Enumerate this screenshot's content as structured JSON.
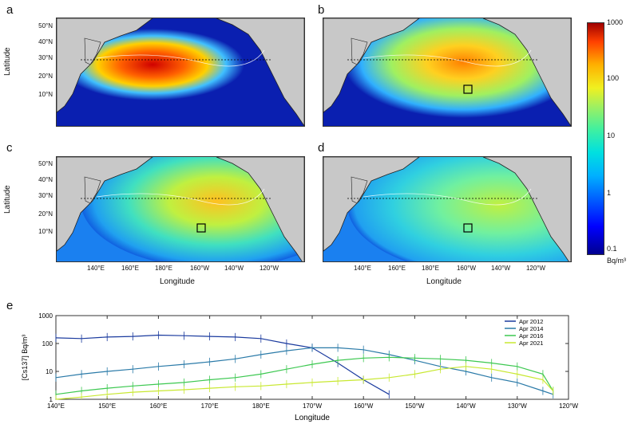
{
  "panels": {
    "a": {
      "letter": "a"
    },
    "b": {
      "letter": "b"
    },
    "c": {
      "letter": "c"
    },
    "d": {
      "letter": "d"
    },
    "e": {
      "letter": "e"
    }
  },
  "maps": {
    "ylabel": "Latitude",
    "xlabel": "Longitude",
    "lat_ticks": [
      "50°N",
      "40°N",
      "30°N",
      "20°N",
      "10°N"
    ],
    "lon_ticks": [
      "140°E",
      "160°E",
      "180°E",
      "160°W",
      "140°W",
      "120°W"
    ]
  },
  "colorbar": {
    "ticks": [
      "1000",
      "100",
      "10",
      "1",
      "0.1"
    ],
    "unit": "Bq/m³",
    "colors": [
      "#00008f",
      "#0000ff",
      "#00b0ff",
      "#40f0a0",
      "#f0f020",
      "#ff4000",
      "#9f0000"
    ],
    "scale": "log"
  },
  "chart_data": {
    "type": "line",
    "ylabel": "[Cs137] Bq/m³",
    "xlabel": "Longitude",
    "yscale": "log",
    "ylim": [
      1,
      1000
    ],
    "y_ticks": [
      "1000",
      "100",
      "10",
      "1"
    ],
    "x_ticks": [
      "140°E",
      "150°E",
      "160°E",
      "170°E",
      "180°E",
      "170°W",
      "160°W",
      "150°W",
      "140°W",
      "130°W",
      "120°W"
    ],
    "xlim": [
      140,
      240
    ],
    "legend_position": "top-right",
    "x": [
      140,
      145,
      150,
      155,
      160,
      165,
      170,
      175,
      180,
      185,
      190,
      195,
      200,
      205,
      210,
      215,
      220,
      225,
      230,
      235,
      237
    ],
    "series": [
      {
        "name": "Apr 2012",
        "color": "#1a3a9e",
        "values": [
          160,
          150,
          170,
          180,
          200,
          190,
          180,
          170,
          150,
          100,
          70,
          20,
          5,
          1.5,
          null,
          null,
          null,
          null,
          null,
          null,
          null
        ]
      },
      {
        "name": "Apr 2014",
        "color": "#2a7aa8",
        "values": [
          6,
          8,
          10,
          12,
          15,
          18,
          22,
          28,
          40,
          55,
          70,
          70,
          60,
          40,
          25,
          15,
          10,
          6,
          4,
          2,
          1.5
        ]
      },
      {
        "name": "Apr 2016",
        "color": "#3cc850",
        "values": [
          1.5,
          2,
          2.5,
          3,
          3.5,
          4,
          5,
          6,
          8,
          12,
          18,
          25,
          30,
          32,
          30,
          28,
          25,
          20,
          15,
          8,
          2
        ]
      },
      {
        "name": "Apr 2021",
        "color": "#c8e830",
        "values": [
          1,
          1.2,
          1.5,
          1.8,
          2,
          2.2,
          2.5,
          2.8,
          3,
          3.5,
          4,
          4.5,
          5,
          6,
          8,
          12,
          15,
          12,
          8,
          5,
          2
        ]
      }
    ]
  }
}
